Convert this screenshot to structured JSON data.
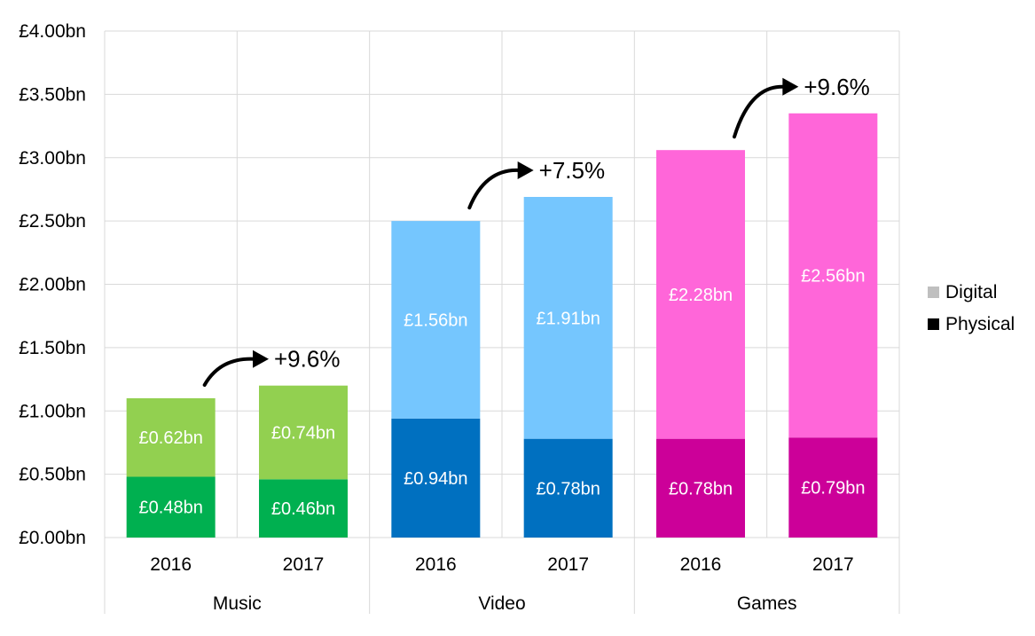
{
  "chart_data": {
    "type": "bar",
    "stacked": true,
    "ylim": [
      0,
      4
    ],
    "ytick_values": [
      0,
      0.5,
      1,
      1.5,
      2,
      2.5,
      3,
      3.5,
      4
    ],
    "ytick_labels": [
      "£0.00bn",
      "£0.50bn",
      "£1.00bn",
      "£1.50bn",
      "£2.00bn",
      "£2.50bn",
      "£3.00bn",
      "£3.50bn",
      "£4.00bn"
    ],
    "grid": true,
    "legend_position": "right",
    "groups": [
      {
        "name": "Music",
        "colors": {
          "Physical": "#00b050",
          "Digital": "#92d050"
        },
        "bars": [
          {
            "year": "2016",
            "Physical": 0.48,
            "Digital": 0.62,
            "physical_label": "£0.48bn",
            "digital_label": "£0.62bn"
          },
          {
            "year": "2017",
            "Physical": 0.46,
            "Digital": 0.74,
            "physical_label": "£0.46bn",
            "digital_label": "£0.74bn"
          }
        ],
        "growth": "+9.6%"
      },
      {
        "name": "Video",
        "colors": {
          "Physical": "#0070c0",
          "Digital": "#75c6fe"
        },
        "bars": [
          {
            "year": "2016",
            "Physical": 0.94,
            "Digital": 1.56,
            "physical_label": "£0.94bn",
            "digital_label": "£1.56bn"
          },
          {
            "year": "2017",
            "Physical": 0.78,
            "Digital": 1.91,
            "physical_label": "£0.78bn",
            "digital_label": "£1.91bn"
          }
        ],
        "growth": "+7.5%"
      },
      {
        "name": "Games",
        "colors": {
          "Physical": "#cc0099",
          "Digital": "#ff66d9"
        },
        "bars": [
          {
            "year": "2016",
            "Physical": 0.78,
            "Digital": 2.28,
            "physical_label": "£0.78bn",
            "digital_label": "£2.28bn"
          },
          {
            "year": "2017",
            "Physical": 0.79,
            "Digital": 2.56,
            "physical_label": "£0.79bn",
            "digital_label": "£2.56bn"
          }
        ],
        "growth": "+9.6%"
      }
    ],
    "legend": [
      {
        "name": "Digital",
        "color": "#bfbfbf"
      },
      {
        "name": "Physical",
        "color": "#000000"
      }
    ]
  }
}
